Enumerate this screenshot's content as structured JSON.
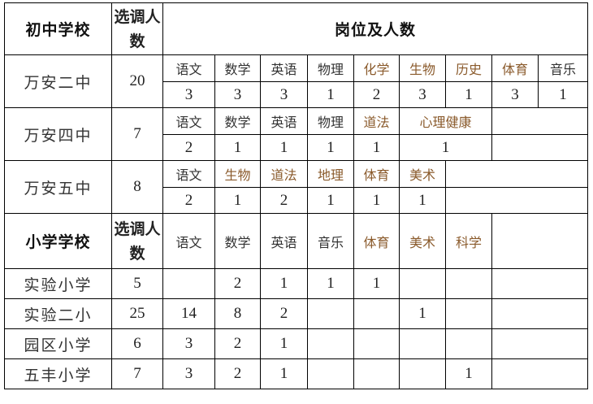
{
  "headers": {
    "middle_school": "初中学校",
    "count": "选调人数",
    "positions": "岗位及人数",
    "primary_school": "小学学校"
  },
  "middle_schools": [
    {
      "name": "万安二中",
      "total": "20",
      "subjects": [
        "语文",
        "数学",
        "英语",
        "物理",
        "化学",
        "生物",
        "历史",
        "体育",
        "音乐"
      ],
      "counts": [
        "3",
        "3",
        "3",
        "1",
        "2",
        "3",
        "1",
        "3",
        "1"
      ]
    },
    {
      "name": "万安四中",
      "total": "7",
      "subjects": [
        "语文",
        "数学",
        "英语",
        "物理",
        "道法",
        "心理健康"
      ],
      "counts": [
        "2",
        "1",
        "1",
        "1",
        "1",
        "1"
      ]
    },
    {
      "name": "万安五中",
      "total": "8",
      "subjects": [
        "语文",
        "生物",
        "道法",
        "地理",
        "体育",
        "美术"
      ],
      "counts": [
        "2",
        "1",
        "2",
        "1",
        "1",
        "1"
      ]
    }
  ],
  "primary_subjects": [
    "语文",
    "数学",
    "英语",
    "音乐",
    "体育",
    "美术",
    "科学"
  ],
  "primary_schools": [
    {
      "name": "实验小学",
      "total": "5",
      "counts": [
        "",
        "2",
        "1",
        "1",
        "1",
        "",
        ""
      ]
    },
    {
      "name": "实验二小",
      "total": "25",
      "counts": [
        "14",
        "8",
        "2",
        "",
        "",
        "1",
        ""
      ]
    },
    {
      "name": "园区小学",
      "total": "6",
      "counts": [
        "3",
        "2",
        "1",
        "",
        "",
        "",
        ""
      ]
    },
    {
      "name": "五丰小学",
      "total": "7",
      "counts": [
        "3",
        "2",
        "1",
        "",
        "",
        "",
        "1"
      ]
    }
  ],
  "accent_text_color": "#8a5a2b"
}
